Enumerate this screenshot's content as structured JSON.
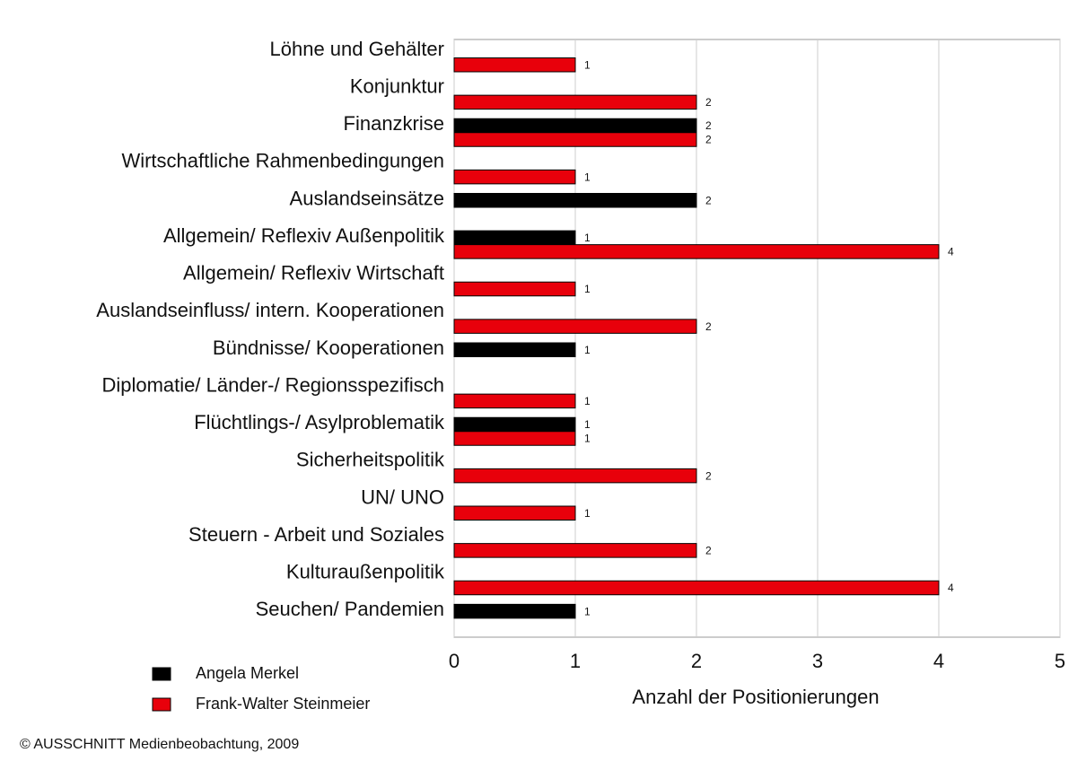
{
  "chart_data": {
    "type": "hbar",
    "categories": [
      "Löhne und Gehälter",
      "Konjunktur",
      "Finanzkrise",
      "Wirtschaftliche Rahmenbedingungen",
      "Auslandseinsätze",
      "Allgemein/ Reflexiv Außenpolitik",
      "Allgemein/ Reflexiv Wirtschaft",
      "Auslandseinfluss/ intern. Kooperationen",
      "Bündnisse/ Kooperationen",
      "Diplomatie/ Länder-/ Regionsspezifisch",
      "Flüchtlings-/ Asylproblematik",
      "Sicherheitspolitik",
      "UN/ UNO",
      "Steuern - Arbeit und Soziales",
      "Kulturaußenpolitik",
      "Seuchen/ Pandemien"
    ],
    "series": [
      {
        "name": "Angela Merkel",
        "color": "#000000",
        "values": [
          null,
          null,
          2,
          null,
          2,
          1,
          null,
          null,
          1,
          null,
          1,
          null,
          null,
          null,
          null,
          1
        ]
      },
      {
        "name": "Frank-Walter Steinmeier",
        "color": "#e8000b",
        "values": [
          1,
          2,
          2,
          1,
          null,
          4,
          1,
          2,
          null,
          1,
          1,
          2,
          1,
          2,
          4,
          null
        ]
      }
    ],
    "xlabel": "Anzahl der Positionierungen",
    "xlim": [
      0,
      5
    ],
    "xticks": [
      0,
      1,
      2,
      3,
      4,
      5
    ],
    "grid": true,
    "footer": "© AUSSCHNITT Medienbeobachtung, 2009"
  }
}
